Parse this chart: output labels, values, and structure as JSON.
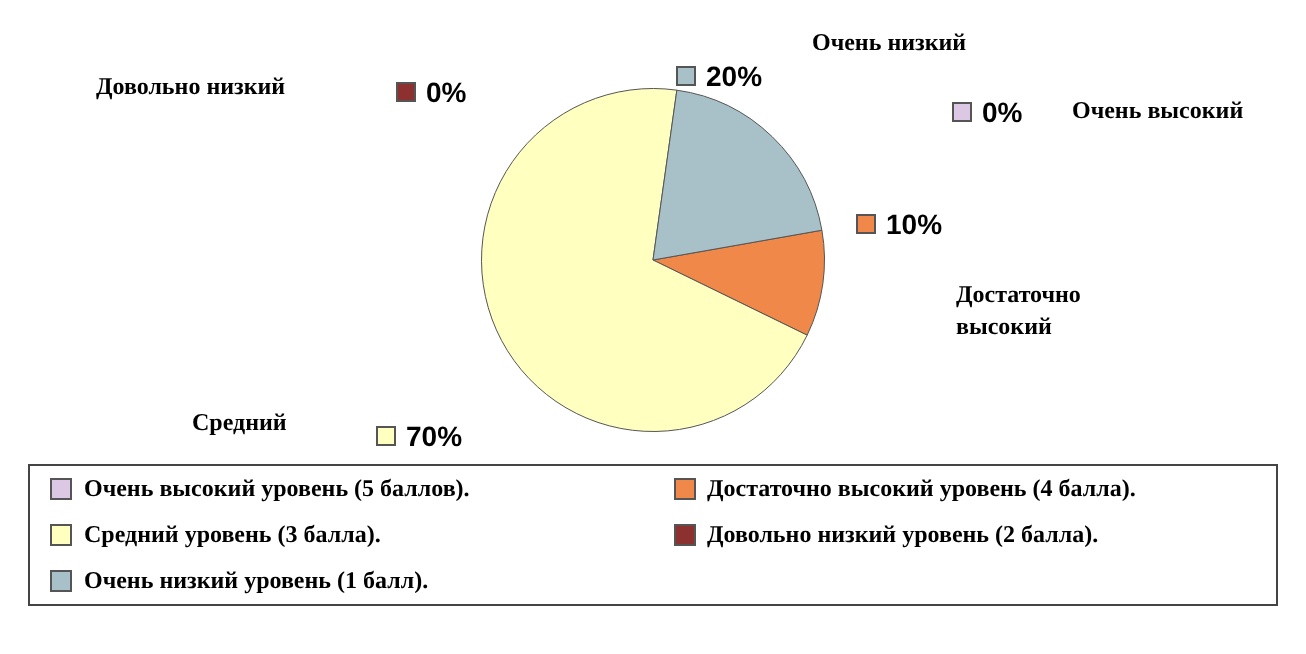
{
  "chart_data": {
    "type": "pie",
    "categories": [
      "Очень высокий уровень (5  баллов).",
      "Достаточно высокий уровень (4 балла).",
      "Средний уровень (3 балла).",
      "Довольно низкий уровень (2 балла).",
      "Очень низкий уровень (1 балл)."
    ],
    "values": [
      0,
      10,
      70,
      0,
      20
    ],
    "colors": [
      "#dcc8e4",
      "#f0884a",
      "#ffffc0",
      "#8c3030",
      "#a8c0c8"
    ],
    "value_labels": [
      "0%",
      "10%",
      "70%",
      "0%",
      "20%"
    ],
    "annotations": [
      "Очень высокий",
      "Достаточно высокий",
      "Средний",
      "Довольно низкий",
      "Очень низкий"
    ],
    "legend": "bottom"
  }
}
